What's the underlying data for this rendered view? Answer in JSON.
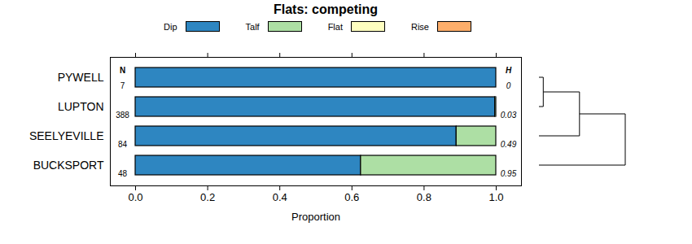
{
  "chart_data": {
    "type": "bar",
    "title": "Flats: competing",
    "orientation": "horizontal",
    "stacked": true,
    "legend": "top",
    "categories": [
      "PYWELL",
      "LUPTON",
      "SEELYEVILLE",
      "BUCKSPORT"
    ],
    "series": [
      {
        "name": "Dip",
        "color": "#2e86c1",
        "values": [
          1,
          0.997,
          0.89,
          0.625
        ]
      },
      {
        "name": "Talf",
        "color": "#addfa4",
        "values": [
          0,
          0.003,
          0.11,
          0.375
        ]
      },
      {
        "name": "Flat",
        "color": "#ffffc0",
        "values": [
          0,
          0,
          0,
          0
        ]
      },
      {
        "name": "Rise",
        "color": "#fdae6b",
        "values": [
          0,
          0,
          0,
          0
        ]
      }
    ],
    "xlabel": "Proportion",
    "xlim": [
      -0.07,
      1.07
    ],
    "xticks": [
      {
        "value": 0,
        "label": "0.0"
      },
      {
        "value": 0.2,
        "label": "0.2"
      },
      {
        "value": 0.4,
        "label": "0.4"
      },
      {
        "value": 0.6,
        "label": "0.6"
      },
      {
        "value": 0.8,
        "label": "0.8"
      },
      {
        "value": 1,
        "label": "1.0"
      }
    ],
    "n_label": "N",
    "n": [
      7,
      388,
      84,
      48
    ],
    "h_label": "H",
    "h": [
      0,
      0.03,
      0.49,
      0.95
    ],
    "dendrogram": {
      "height": 1,
      "children": [
        {
          "height": 0.47,
          "children": [
            {
              "height": 0.05,
              "children": [
                "PYWELL",
                "LUPTON"
              ]
            },
            "SEELYEVILLE"
          ]
        },
        "BUCKSPORT"
      ]
    }
  }
}
